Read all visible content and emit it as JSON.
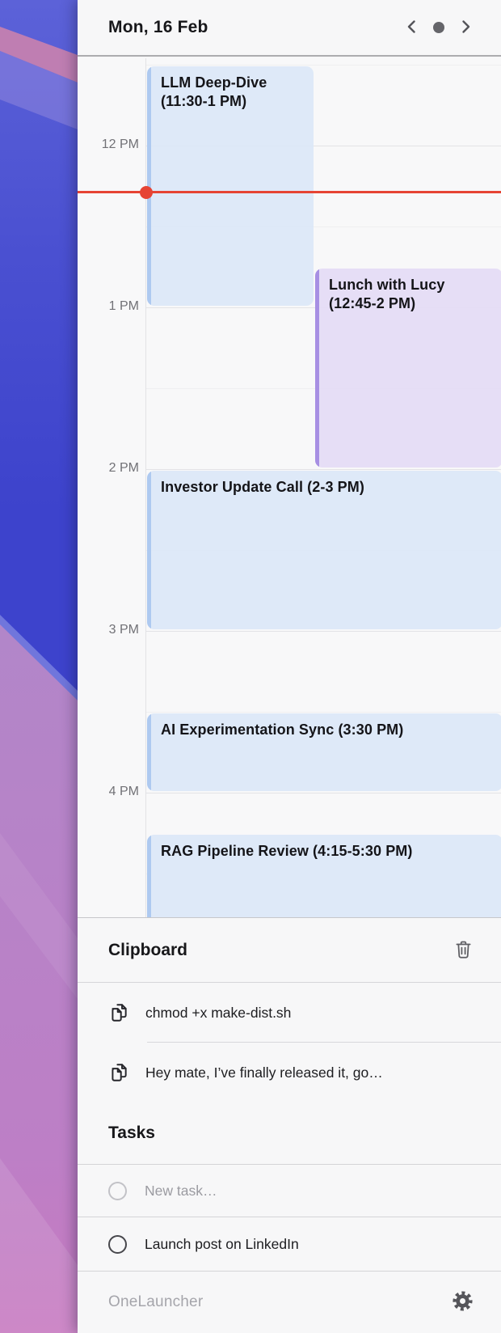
{
  "header": {
    "date_label": "Mon, 16 Feb",
    "nav": {
      "prev_icon": "chevron-left",
      "today_icon": "dot",
      "next_icon": "chevron-right"
    }
  },
  "calendar": {
    "hour_labels": [
      "12 PM",
      "1 PM",
      "2 PM",
      "3 PM",
      "4 PM"
    ],
    "events": [
      {
        "title": "LLM Deep-Dive (11:30-1 PM)",
        "start": "11:30",
        "end": "13:00",
        "color": "blue",
        "lane": "left"
      },
      {
        "title": "Lunch with Lucy (12:45-2 PM)",
        "start": "12:45",
        "end": "14:00",
        "color": "purple",
        "lane": "right"
      },
      {
        "title": "Investor Update Call (2-3 PM)",
        "start": "14:00",
        "end": "15:00",
        "color": "blue",
        "lane": "full"
      },
      {
        "title": "AI Experimentation Sync (3:30 PM)",
        "start": "15:30",
        "end": "16:00",
        "color": "blue",
        "lane": "full"
      },
      {
        "title": "RAG Pipeline Review (4:15-5:30 PM)",
        "start": "16:15",
        "end": "17:30",
        "color": "blue",
        "lane": "full"
      }
    ]
  },
  "clipboard": {
    "title": "Clipboard",
    "clear_icon": "trash-icon",
    "items": [
      {
        "icon": "copy-icon",
        "text": "chmod +x make-dist.sh"
      },
      {
        "icon": "copy-icon",
        "text": "Hey mate, I’ve finally released it, go…"
      }
    ]
  },
  "tasks": {
    "title": "Tasks",
    "new_task_placeholder": "New task…",
    "items": [
      {
        "label": "Launch post on LinkedIn",
        "completed": false
      }
    ]
  },
  "footer": {
    "app_name": "OneLauncher",
    "settings_icon": "gear-icon"
  },
  "colors": {
    "now_line": "#e64434",
    "event_blue_bg": "#dbe7f7",
    "event_blue_bar": "#aec9f0",
    "event_purple_bg": "#e3dbf5",
    "event_purple_bar": "#a78fe3"
  }
}
